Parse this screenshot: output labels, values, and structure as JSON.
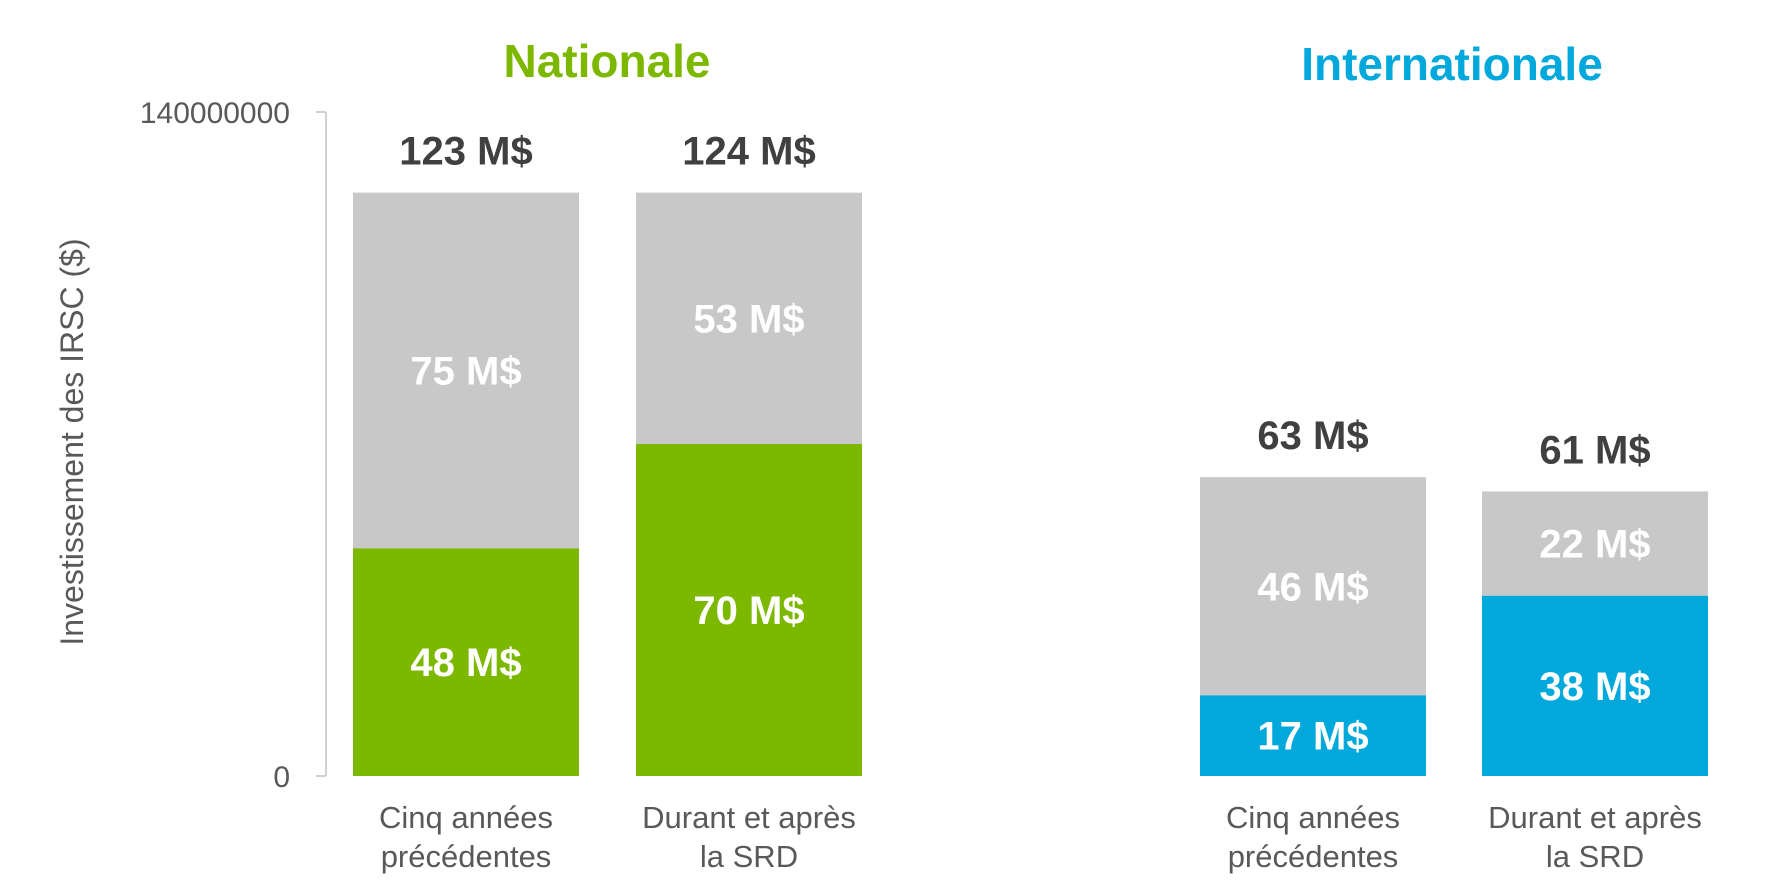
{
  "chart_data": {
    "type": "bar",
    "stacked": true,
    "ylabel": "Investissement des IRSC ($)",
    "ylim": [
      0,
      140000000
    ],
    "yticks": [
      "140000000",
      "0"
    ],
    "grid": false,
    "colors": {
      "neutral": "#c8c8c8",
      "nationale": "#7cb800",
      "internationale": "#00a8dc"
    },
    "panels": [
      {
        "title": "Nationale",
        "color": "#7cb800",
        "categories": [
          {
            "line1": "Cinq années",
            "line2": "précédentes",
            "bottom": 48000000,
            "top": 75000000,
            "bottom_label": "48 M$",
            "top_label": "75 M$",
            "total_label": "123 M$"
          },
          {
            "line1": "Durant et après",
            "line2": "la SRD",
            "bottom": 70000000,
            "top": 53000000,
            "bottom_label": "70 M$",
            "top_label": "53 M$",
            "total_label": "124 M$"
          }
        ]
      },
      {
        "title": "Internationale",
        "color": "#00a8dc",
        "categories": [
          {
            "line1": "Cinq années",
            "line2": "précédentes",
            "bottom": 17000000,
            "top": 46000000,
            "bottom_label": "17 M$",
            "top_label": "46 M$",
            "total_label": "63 M$"
          },
          {
            "line1": "Durant et après",
            "line2": "la SRD",
            "bottom": 38000000,
            "top": 22000000,
            "bottom_label": "38 M$",
            "top_label": "22 M$",
            "total_label": "61 M$"
          }
        ]
      }
    ]
  }
}
